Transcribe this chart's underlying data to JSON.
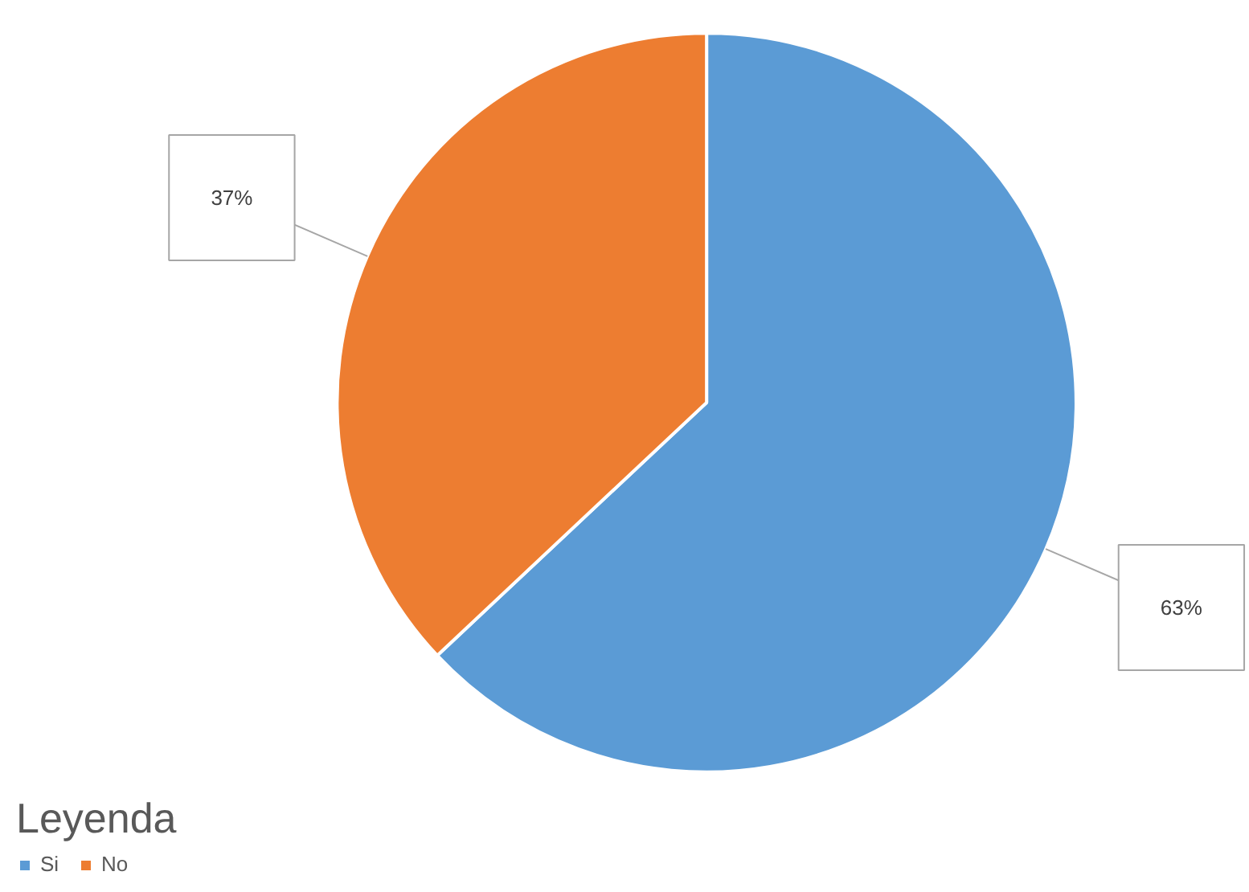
{
  "chart_data": {
    "type": "pie",
    "categories": [
      "Si",
      "No"
    ],
    "values": [
      63,
      37
    ],
    "colors": [
      "#5b9bd5",
      "#ed7d31"
    ],
    "value_labels": [
      "63%",
      "37%"
    ],
    "legend": "bottom left",
    "legend_title": "Leyenda"
  }
}
